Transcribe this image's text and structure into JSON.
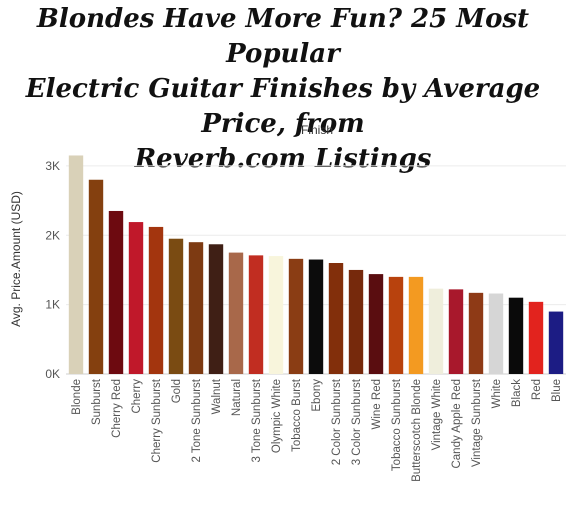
{
  "title_lines": [
    "Blondes Have More Fun? 25 Most Popular",
    "Electric Guitar Finishes by Average Price, from",
    "Reverb.com Listings"
  ],
  "chart_data": {
    "type": "bar",
    "header": "Finish",
    "ylabel": "Avg. Price.Amount (USD)",
    "ylim": [
      0,
      3200
    ],
    "yticks": [
      0,
      1000,
      2000,
      3000
    ],
    "ytick_labels": [
      "0K",
      "1K",
      "2K",
      "3K"
    ],
    "grid": true,
    "categories": [
      "Blonde",
      "Sunburst",
      "Cherry Red",
      "Cherry",
      "Cherry Sunburst",
      "Gold",
      "2 Tone Sunburst",
      "Walnut",
      "Natural",
      "3 Tone Sunburst",
      "Olympic White",
      "Tobacco Burst",
      "Ebony",
      "2 Color Sunburst",
      "3 Color Sunburst",
      "Wine Red",
      "Tobacco Sunburst",
      "Butterscotch Blonde",
      "Vintage White",
      "Candy Apple Red",
      "Vintage Sunburst",
      "White",
      "Black",
      "Red",
      "Blue"
    ],
    "values": [
      3150,
      2800,
      2350,
      2190,
      2120,
      1950,
      1900,
      1870,
      1750,
      1710,
      1700,
      1660,
      1650,
      1600,
      1500,
      1440,
      1400,
      1400,
      1230,
      1220,
      1170,
      1160,
      1100,
      1040,
      900
    ],
    "colors": [
      "#d9d1b8",
      "#84400f",
      "#6d0a10",
      "#c0182a",
      "#a3350e",
      "#7a4b12",
      "#7d3a12",
      "#3f1f15",
      "#a8684a",
      "#c12d21",
      "#f8f5dc",
      "#8a3d14",
      "#0c0c0c",
      "#822f0b",
      "#76290c",
      "#5a0d10",
      "#b8420d",
      "#f39a21",
      "#efeedc",
      "#a8182c",
      "#8e3a16",
      "#d6d6d6",
      "#0a0a0a",
      "#e2231e",
      "#1c1c84"
    ]
  }
}
